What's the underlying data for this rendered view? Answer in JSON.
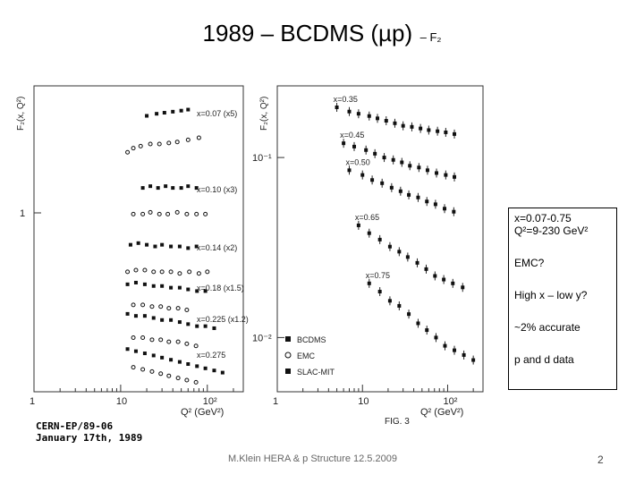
{
  "slide": {
    "title": "1989 – BCDMS (µp)",
    "title_suffix": "– F₂",
    "footer": "M.Klein HERA & p Structure 12.5.2009",
    "page_number": "2"
  },
  "info_panel": {
    "line1": "x=0.07-0.75",
    "line2": "Q²=9-230 GeV²",
    "line3": "EMC?",
    "line4": "High x – low y?",
    "line5": "~2% accurate",
    "line6": "p and d data"
  },
  "scan_text": {
    "caption1": "CERN-EP/89-06",
    "caption2": "January 17th, 1989",
    "fig_label": "FIG. 3"
  },
  "chart_data": [
    {
      "type": "scatter",
      "xlabel": "Q² (GeV²)",
      "ylabel": "F₂(x, Q²)",
      "xscale": "log",
      "xlim": [
        1,
        260
      ],
      "x_ticks": [
        "1",
        "10",
        "10²"
      ],
      "series": [
        {
          "name": "x=0.07 (x5)",
          "x": [
            20,
            26,
            32,
            40,
            50,
            60
          ],
          "y": [
            0.95,
            0.96,
            0.965,
            0.97,
            0.975,
            0.98
          ],
          "open_x": [
            12,
            14,
            17,
            22,
            28,
            36,
            45,
            60,
            80
          ],
          "open_y": [
            0.8,
            0.82,
            0.83,
            0.84,
            0.84,
            0.845,
            0.85,
            0.86,
            0.87
          ]
        },
        {
          "name": "x=0.10 (x3)",
          "x": [
            18,
            22,
            27,
            33,
            40,
            50,
            60,
            75
          ],
          "y": [
            0.66,
            0.665,
            0.66,
            0.665,
            0.66,
            0.66,
            0.665,
            0.66
          ],
          "open_x": [
            14,
            18,
            22,
            28,
            35,
            45,
            58,
            75,
            95
          ],
          "open_y": [
            0.6,
            0.6,
            0.605,
            0.6,
            0.6,
            0.605,
            0.6,
            0.6,
            0.6
          ]
        },
        {
          "name": "x=0.14 (x2)",
          "x": [
            13,
            16,
            20,
            25,
            30,
            38,
            48,
            60,
            75
          ],
          "y": [
            0.505,
            0.51,
            0.505,
            0.5,
            0.505,
            0.5,
            0.5,
            0.495,
            0.5
          ],
          "open_x": [
            12,
            15,
            19,
            24,
            30,
            38,
            48,
            62,
            80,
            100
          ],
          "open_y": [
            0.44,
            0.445,
            0.445,
            0.44,
            0.44,
            0.44,
            0.435,
            0.44,
            0.435,
            0.44
          ]
        },
        {
          "name": "x=0.18 (x1.5)",
          "x": [
            12,
            15,
            19,
            24,
            30,
            38,
            48,
            60,
            76,
            95
          ],
          "y": [
            0.39,
            0.395,
            0.39,
            0.385,
            0.385,
            0.38,
            0.38,
            0.375,
            0.37,
            0.37
          ],
          "open_x": [
            14,
            18,
            23,
            29,
            36,
            46,
            58
          ],
          "open_y": [
            0.345,
            0.345,
            0.34,
            0.34,
            0.335,
            0.335,
            0.33
          ]
        },
        {
          "name": "x=0.225 (x1.2)",
          "x": [
            12,
            15,
            19,
            24,
            30,
            38,
            48,
            60,
            76,
            95,
            120
          ],
          "y": [
            0.315,
            0.31,
            0.31,
            0.305,
            0.3,
            0.3,
            0.295,
            0.29,
            0.285,
            0.285,
            0.28
          ],
          "open_x": [
            14,
            18,
            23,
            29,
            36,
            46,
            58,
            74
          ],
          "open_y": [
            0.27,
            0.27,
            0.265,
            0.265,
            0.26,
            0.26,
            0.255,
            0.25
          ]
        },
        {
          "name": "x=0.275",
          "x": [
            12,
            15,
            19,
            24,
            30,
            38,
            48,
            60,
            76,
            95,
            120,
            150
          ],
          "y": [
            0.235,
            0.23,
            0.225,
            0.22,
            0.215,
            0.21,
            0.205,
            0.2,
            0.195,
            0.19,
            0.185,
            0.18
          ],
          "open_x": [
            14,
            18,
            23,
            29,
            36,
            46,
            58,
            74
          ],
          "open_y": [
            0.205,
            0.2,
            0.195,
            0.19,
            0.185,
            0.18,
            0.175,
            0.17
          ]
        }
      ]
    },
    {
      "type": "scatter",
      "xlabel": "Q² (GeV²)",
      "ylabel": "F₂(x, Q²)",
      "xscale": "log",
      "yscale": "log",
      "xlim": [
        1,
        260
      ],
      "x_ticks": [
        "1",
        "10",
        "10²"
      ],
      "y_ticks": [
        "10⁻¹",
        "10⁻²"
      ],
      "legend": [
        "BCDMS",
        "EMC",
        "SLAC-MIT"
      ],
      "series": [
        {
          "name": "x=0.35",
          "x": [
            5,
            7,
            9,
            12,
            15,
            19,
            24,
            30,
            38,
            48,
            60,
            76,
            95,
            120
          ],
          "y": [
            0.19,
            0.18,
            0.175,
            0.17,
            0.165,
            0.16,
            0.155,
            0.15,
            0.148,
            0.145,
            0.142,
            0.14,
            0.138,
            0.135
          ]
        },
        {
          "name": "x=0.45",
          "x": [
            6,
            8,
            11,
            14,
            18,
            23,
            29,
            36,
            46,
            58,
            74,
            95,
            120
          ],
          "y": [
            0.12,
            0.115,
            0.11,
            0.105,
            0.1,
            0.097,
            0.094,
            0.09,
            0.088,
            0.085,
            0.082,
            0.08,
            0.078
          ]
        },
        {
          "name": "x=0.50",
          "x": [
            7,
            10,
            13,
            17,
            22,
            28,
            35,
            45,
            57,
            72,
            92,
            118
          ],
          "y": [
            0.085,
            0.08,
            0.075,
            0.072,
            0.068,
            0.065,
            0.062,
            0.06,
            0.057,
            0.055,
            0.052,
            0.05
          ]
        },
        {
          "name": "x=0.65",
          "x": [
            9,
            12,
            16,
            21,
            27,
            34,
            44,
            56,
            71,
            90,
            115,
            150
          ],
          "y": [
            0.042,
            0.038,
            0.035,
            0.032,
            0.03,
            0.028,
            0.026,
            0.024,
            0.022,
            0.021,
            0.02,
            0.019
          ]
        },
        {
          "name": "x=0.75",
          "x": [
            12,
            16,
            21,
            27,
            35,
            45,
            57,
            73,
            93,
            120,
            155,
            200
          ],
          "y": [
            0.02,
            0.018,
            0.016,
            0.015,
            0.0135,
            0.012,
            0.011,
            0.01,
            0.009,
            0.0085,
            0.008,
            0.0075
          ]
        }
      ]
    }
  ]
}
